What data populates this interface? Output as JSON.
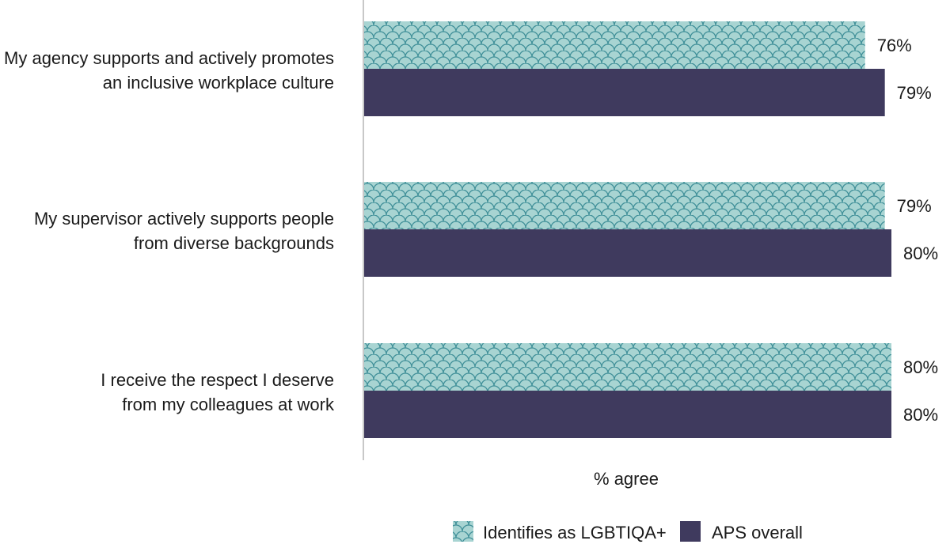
{
  "chart_data": {
    "type": "bar",
    "orientation": "horizontal",
    "title": "",
    "xlabel": "% agree",
    "ylabel": "",
    "xlim": [
      0,
      100
    ],
    "grid": false,
    "legend_position": "bottom-right",
    "categories": [
      "My agency supports and actively promotes an inclusive workplace culture",
      "My supervisor actively supports people from diverse backgrounds",
      "I receive the respect I deserve from my colleagues at work"
    ],
    "category_lines": [
      [
        "My agency supports and actively promotes",
        "an inclusive workplace culture"
      ],
      [
        "My supervisor actively supports people",
        "from diverse backgrounds"
      ],
      [
        "I receive the respect I deserve",
        "from my colleagues at work"
      ]
    ],
    "series": [
      {
        "name": "Identifies as LGBTIQA+",
        "values": [
          76,
          79,
          80
        ],
        "labels": [
          "76%",
          "79%",
          "80%"
        ],
        "color": "#a8d4d2",
        "pattern_color": "#3f8f98"
      },
      {
        "name": "APS overall",
        "values": [
          79,
          80,
          80
        ],
        "labels": [
          "79%",
          "80%",
          "80%"
        ],
        "color": "#3f3a5e"
      }
    ]
  }
}
